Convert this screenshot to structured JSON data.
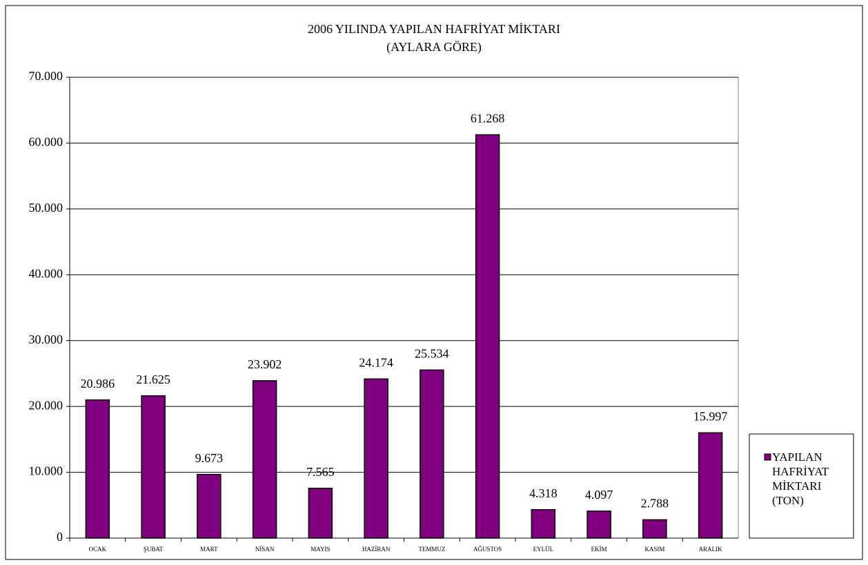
{
  "chart_data": {
    "type": "bar",
    "title": "2006 YILINDA YAPILAN HAFRİYAT MİKTARI",
    "subtitle": "(AYLARA GÖRE)",
    "categories": [
      "OCAK",
      "ŞUBAT",
      "MART",
      "NİSAN",
      "MAYIS",
      "HAZİRAN",
      "TEMMUZ",
      "AĞUSTOS",
      "EYLÜL",
      "EKİM",
      "KASIM",
      "ARALIK"
    ],
    "series": [
      {
        "name": "YAPILAN HAFRİYAT MİKTARI (TON)",
        "color": "#800080",
        "values": [
          20986,
          21625,
          9673,
          23902,
          7565,
          24174,
          25534,
          61268,
          4318,
          4097,
          2788,
          15997
        ],
        "value_labels": [
          "20.986",
          "21.625",
          "9.673",
          "23.902",
          "7.565",
          "24.174",
          "25.534",
          "61.268",
          "4.318",
          "4.097",
          "2.788",
          "15.997"
        ]
      }
    ],
    "ylim": [
      0,
      70000
    ],
    "yticks": [
      0,
      {
        "value": 10000,
        "label": "10.000"
      },
      {
        "value": 20000,
        "label": "20.000"
      },
      {
        "value": 30000,
        "label": "30.000"
      },
      {
        "value": 40000,
        "label": "40.000"
      },
      {
        "value": 50000,
        "label": "50.000"
      },
      {
        "value": 60000,
        "label": "60.000"
      },
      {
        "value": 70000,
        "label": "70.000"
      }
    ],
    "grid": true,
    "legend": "right"
  }
}
